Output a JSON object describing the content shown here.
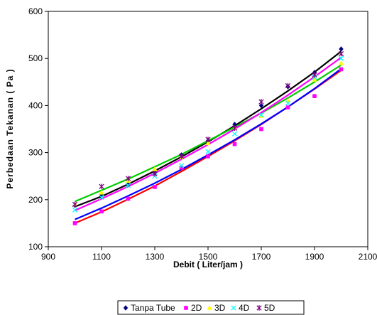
{
  "chart_data": {
    "type": "scatter",
    "xlabel": "Debit ( Liter/jam )",
    "ylabel": "Perbedaan Tekanan ( Pa )",
    "xlim": [
      900,
      2100
    ],
    "ylim": [
      100,
      600
    ],
    "xticks": [
      900,
      1100,
      1300,
      1500,
      1700,
      1900,
      2100
    ],
    "yticks": [
      100,
      200,
      300,
      400,
      500,
      600
    ],
    "grid": false,
    "legend_position": "bottom",
    "x": [
      1000,
      1100,
      1200,
      1300,
      1400,
      1500,
      1600,
      1700,
      1800,
      1900,
      2000
    ],
    "series": [
      {
        "name": "Tanpa Tube",
        "marker": "diamond",
        "color": "#000080",
        "trend_color": "#000000",
        "values": [
          188,
          210,
          232,
          258,
          295,
          325,
          360,
          400,
          440,
          470,
          520
        ],
        "trend": [
          185,
          207,
          233,
          261,
          291,
          323,
          357,
          393,
          431,
          471,
          515
        ]
      },
      {
        "name": "2D",
        "marker": "square",
        "color": "#FF00FF",
        "trend_color": "#FF0000",
        "values": [
          150,
          175,
          202,
          227,
          268,
          292,
          318,
          350,
          396,
          420,
          477
        ],
        "trend": [
          150,
          174,
          201,
          229,
          260,
          292,
          325,
          360,
          397,
          435,
          475
        ]
      },
      {
        "name": "3D",
        "marker": "triangle",
        "color": "#FFFF00",
        "trend_color": "#00CC00",
        "values": [
          190,
          215,
          240,
          265,
          290,
          320,
          352,
          378,
          410,
          455,
          490
        ],
        "trend": [
          196,
          220,
          244,
          270,
          296,
          325,
          354,
          384,
          416,
          450,
          486
        ]
      },
      {
        "name": "4D",
        "marker": "x",
        "color": "#00FFFF",
        "trend_color": "#0000FF",
        "values": [
          178,
          205,
          230,
          250,
          272,
          302,
          340,
          380,
          405,
          460,
          500
        ],
        "trend": [
          158,
          182,
          208,
          235,
          264,
          295,
          327,
          361,
          397,
          436,
          478
        ]
      },
      {
        "name": "5D",
        "marker": "star",
        "color": "#800080",
        "trend_color": "#FF00FF",
        "values": [
          190,
          228,
          245,
          255,
          292,
          328,
          352,
          408,
          442,
          465,
          510
        ],
        "trend": [
          177,
          202,
          228,
          256,
          286,
          317,
          350,
          385,
          422,
          461,
          502
        ]
      }
    ]
  }
}
